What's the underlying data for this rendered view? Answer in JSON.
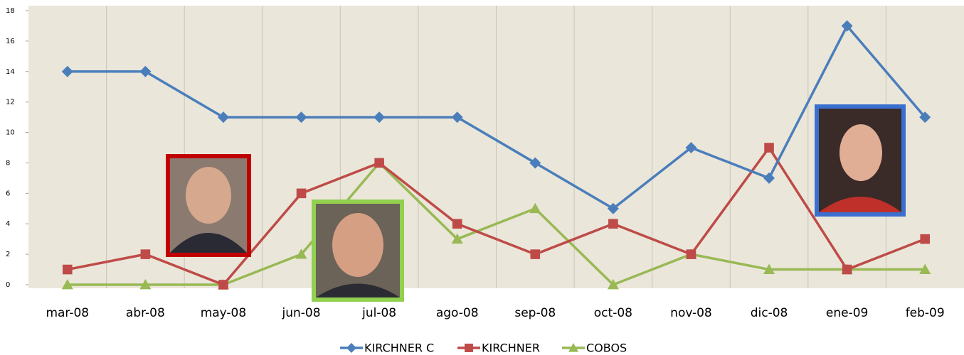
{
  "chart_data": {
    "type": "line",
    "categories": [
      "mar-08",
      "abr-08",
      "may-08",
      "jun-08",
      "jul-08",
      "ago-08",
      "sep-08",
      "oct-08",
      "nov-08",
      "dic-08",
      "ene-09",
      "feb-09"
    ],
    "series": [
      {
        "name": "KIRCHNER C",
        "color": "#4a7ebb",
        "marker": "diamond",
        "values": [
          14,
          14,
          11,
          11,
          11,
          11,
          8,
          5,
          9,
          7,
          17,
          11
        ]
      },
      {
        "name": "KIRCHNER",
        "color": "#be4b48",
        "marker": "square",
        "values": [
          1,
          2,
          0,
          6,
          8,
          4,
          2,
          4,
          2,
          9,
          1,
          3
        ]
      },
      {
        "name": "COBOS",
        "color": "#98b954",
        "marker": "triangle",
        "values": [
          0,
          0,
          0,
          2,
          8,
          3,
          5,
          0,
          2,
          1,
          1,
          1
        ]
      }
    ],
    "ylim": [
      0,
      18
    ],
    "yticks": [
      0,
      2,
      4,
      6,
      8,
      10,
      12,
      14,
      16,
      18
    ],
    "legend": "bottom"
  }
}
